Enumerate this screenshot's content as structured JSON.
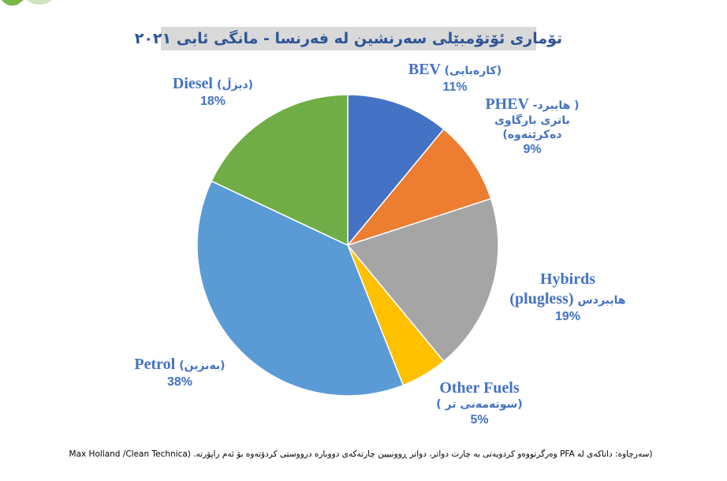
{
  "chart_data": {
    "type": "pie",
    "title": "تۆماری ئۆتۆمبێلی سەرنشین لە فەرنسا - مانگی ئابی ٢٠٢١",
    "slices": [
      {
        "key": "bev",
        "value": 11,
        "percent_label": "11%",
        "color": "#4472c4",
        "label_lines": [
          "BEV (کارەبایی)"
        ]
      },
      {
        "key": "phev",
        "value": 9,
        "percent_label": "9%",
        "color": "#ed7d31",
        "label_lines": [
          "PHEV ( هایبرد-",
          "باتری بارگاوی",
          "دەکرێتەوە)"
        ]
      },
      {
        "key": "hybrid",
        "value": 19,
        "percent_label": "19%",
        "color": "#a5a5a5",
        "label_lines": [
          "Hybirds",
          "(plugless) هایبردس"
        ]
      },
      {
        "key": "other",
        "value": 5,
        "percent_label": "5%",
        "color": "#ffc000",
        "label_lines": [
          "Other Fuels",
          "(سوتەمەنی تر )"
        ]
      },
      {
        "key": "petrol",
        "value": 38,
        "percent_label": "38%",
        "color": "#5b9bd5",
        "label_lines": [
          "Petrol (بەنزین)"
        ]
      },
      {
        "key": "diesel",
        "value": 18,
        "percent_label": "18%",
        "color": "#70ad47",
        "label_lines": [
          "Diesel (دیزڵ)"
        ]
      }
    ]
  },
  "source_note": "(سەرچاوە: داتاکەی لە PFA وەرگرتووەو کردویەتی بە چارت دواتر، دواتر ڕوونبیین چارتەکەی دووبارە درووستی کردۆتەوە بۆ ئەم راپۆرتە. (Max Holland /Clean Technica"
}
